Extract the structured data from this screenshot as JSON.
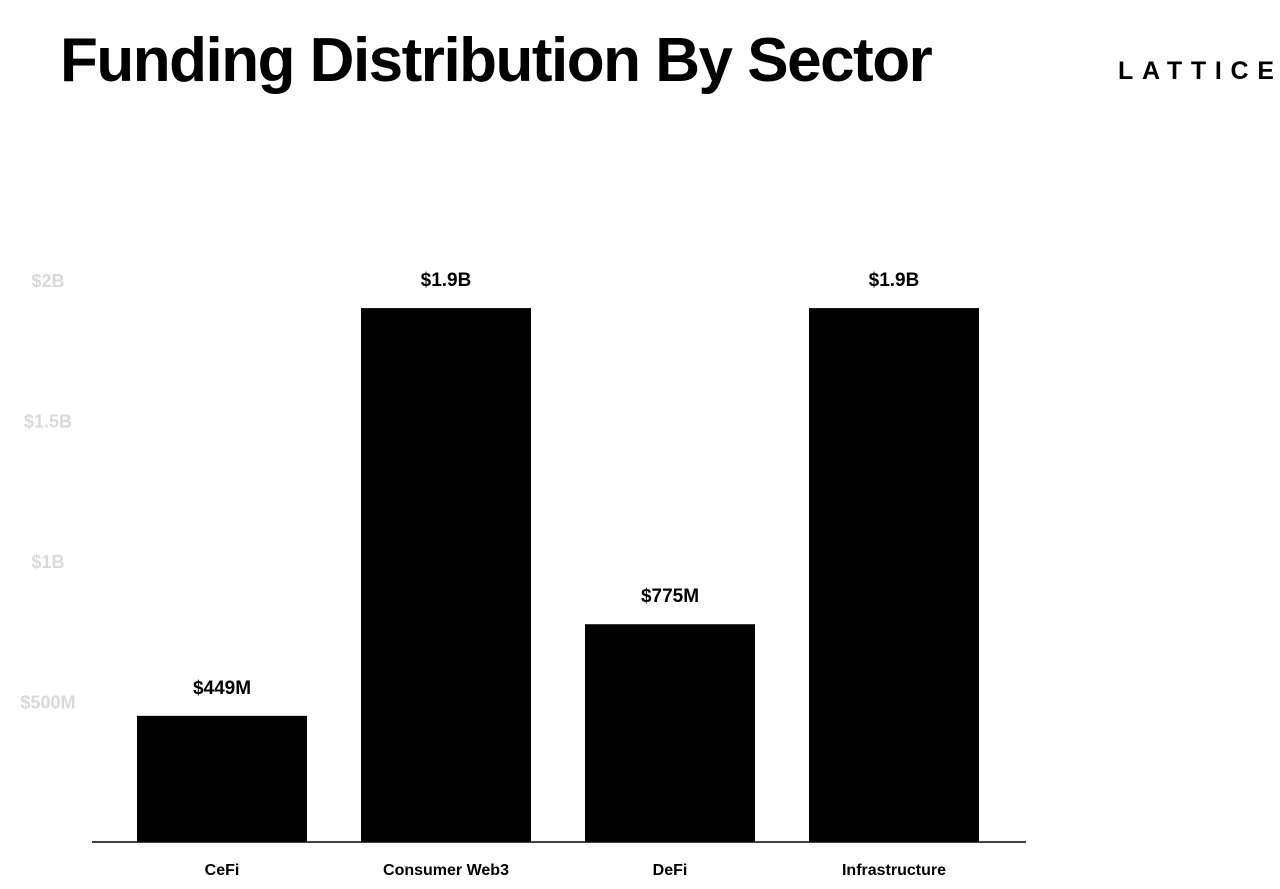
{
  "header": {
    "title": "Funding Distribution By Sector",
    "logo_text": "LATTICE"
  },
  "colors": {
    "bar": "#000000",
    "axis": "#000000",
    "tick_label": "#d9d9d9",
    "background": "#ffffff"
  },
  "chart_data": {
    "type": "bar",
    "title": "Funding Distribution By Sector",
    "xlabel": "",
    "ylabel": "",
    "categories": [
      "CeFi",
      "Consumer Web3",
      "DeFi",
      "Infrastructure"
    ],
    "values": [
      449000000,
      1900000000,
      775000000,
      1900000000
    ],
    "data_labels": [
      "$449M",
      "$1.9B",
      "$775M",
      "$1.9B"
    ],
    "y_ticks": [
      500000000,
      1000000000,
      1500000000,
      2000000000
    ],
    "y_tick_labels": [
      "$500M",
      "$1B",
      "$1.5B",
      "$2B"
    ],
    "ylim": [
      0,
      2000000000
    ],
    "grid": false,
    "legend": "none"
  }
}
